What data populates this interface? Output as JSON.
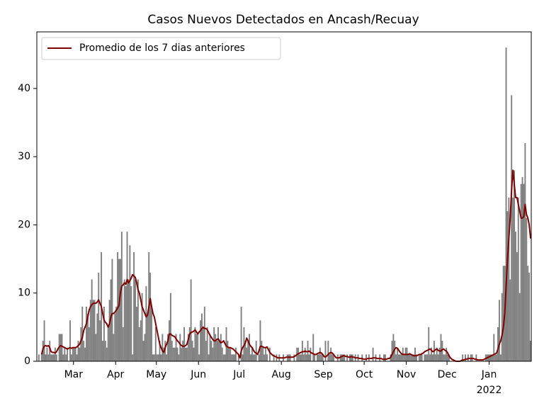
{
  "chart_data": {
    "type": "bar",
    "title": "Casos Nuevos Detectados en Ancash/Recuay",
    "categories": [
      null,
      null,
      null,
      null,
      null,
      null,
      null,
      null,
      null,
      null,
      null,
      null,
      null,
      null,
      null,
      null,
      null,
      null,
      null,
      null,
      null,
      null,
      null,
      null,
      null,
      null,
      null,
      "Mar",
      null,
      null,
      null,
      null,
      null,
      null,
      null,
      null,
      null,
      null,
      null,
      null,
      null,
      null,
      null,
      null,
      null,
      null,
      null,
      null,
      null,
      null,
      null,
      null,
      null,
      null,
      null,
      null,
      null,
      null,
      "Apr",
      null,
      null,
      null,
      null,
      null,
      null,
      null,
      null,
      null,
      null,
      null,
      null,
      null,
      null,
      null,
      null,
      null,
      null,
      null,
      null,
      null,
      null,
      null,
      null,
      null,
      null,
      null,
      null,
      null,
      "May",
      null,
      null,
      null,
      null,
      null,
      null,
      null,
      null,
      null,
      null,
      null,
      null,
      null,
      null,
      null,
      null,
      null,
      null,
      null,
      null,
      null,
      null,
      null,
      null,
      null,
      null,
      null,
      null,
      null,
      null,
      "Jun",
      null,
      null,
      null,
      null,
      null,
      null,
      null,
      null,
      null,
      null,
      null,
      null,
      null,
      null,
      null,
      null,
      null,
      null,
      null,
      null,
      null,
      null,
      null,
      null,
      null,
      null,
      null,
      null,
      null,
      "Jul",
      null,
      null,
      null,
      null,
      null,
      null,
      null,
      null,
      null,
      null,
      null,
      null,
      null,
      null,
      null,
      null,
      null,
      null,
      null,
      null,
      null,
      null,
      null,
      null,
      null,
      null,
      null,
      null,
      null,
      null,
      "Aug",
      null,
      null,
      null,
      null,
      null,
      null,
      null,
      null,
      null,
      null,
      null,
      null,
      null,
      null,
      null,
      null,
      null,
      null,
      null,
      null,
      null,
      null,
      null,
      null,
      null,
      null,
      null,
      null,
      null,
      null,
      "Sep",
      null,
      null,
      null,
      null,
      null,
      null,
      null,
      null,
      null,
      null,
      null,
      null,
      null,
      null,
      null,
      null,
      null,
      null,
      null,
      null,
      null,
      null,
      null,
      null,
      null,
      null,
      null,
      null,
      null,
      "Oct",
      null,
      null,
      null,
      null,
      null,
      null,
      null,
      null,
      null,
      null,
      null,
      null,
      null,
      null,
      null,
      null,
      null,
      null,
      null,
      null,
      null,
      null,
      null,
      null,
      null,
      null,
      null,
      null,
      null,
      null,
      "Nov",
      null,
      null,
      null,
      null,
      null,
      null,
      null,
      null,
      null,
      null,
      null,
      null,
      null,
      null,
      null,
      null,
      null,
      null,
      null,
      null,
      null,
      null,
      null,
      null,
      null,
      null,
      null,
      null,
      null,
      "Dec",
      null,
      null,
      null,
      null,
      null,
      null,
      null,
      null,
      null,
      null,
      null,
      null,
      null,
      null,
      null,
      null,
      null,
      null,
      null,
      null,
      null,
      null,
      null,
      null,
      null,
      null,
      null,
      null,
      null,
      null,
      "Jan",
      null,
      null,
      null,
      null,
      null,
      null,
      null,
      null,
      null,
      null,
      null,
      null,
      null,
      null,
      null,
      null,
      null,
      null,
      null,
      null,
      null,
      null,
      null,
      null,
      null,
      null,
      null,
      null,
      null,
      null
    ],
    "year_label": "2022",
    "series": [
      {
        "type": "bar",
        "color": "#808080",
        "values": [
          0,
          1,
          0,
          1,
          3,
          6,
          1,
          2,
          1,
          3,
          1,
          1,
          1,
          2,
          1,
          0,
          4,
          4,
          4,
          1,
          2,
          1,
          2,
          0,
          6,
          1,
          2,
          2,
          2,
          1,
          3,
          2,
          5,
          8,
          3,
          2,
          8,
          7,
          5,
          9,
          12,
          9,
          9,
          4,
          7,
          13,
          6,
          16,
          3,
          8,
          3,
          2,
          5,
          9,
          12,
          15,
          4,
          7,
          8,
          16,
          15,
          15,
          19,
          5,
          12,
          11,
          19,
          12,
          17,
          11,
          1,
          16,
          12,
          8,
          12,
          5,
          6,
          10,
          3,
          4,
          11,
          7,
          16,
          13,
          8,
          1,
          1,
          5,
          1,
          1,
          3,
          1,
          4,
          2,
          3,
          1,
          4,
          6,
          10,
          3,
          2,
          2,
          4,
          2,
          1,
          4,
          2,
          3,
          5,
          2,
          2,
          4,
          5,
          12,
          3,
          2,
          5,
          4,
          4,
          1,
          6,
          7,
          5,
          8,
          3,
          5,
          1,
          4,
          3,
          2,
          5,
          4,
          3,
          5,
          3,
          4,
          2,
          1,
          1,
          5,
          3,
          2,
          2,
          1,
          1,
          1,
          2,
          0,
          1,
          0,
          8,
          1,
          5,
          3,
          2,
          3,
          4,
          1,
          2,
          1,
          1,
          3,
          0,
          1,
          6,
          3,
          2,
          1,
          2,
          1,
          0,
          2,
          0,
          0,
          1,
          0,
          1,
          0,
          1,
          0,
          0,
          1,
          0,
          0,
          1,
          1,
          1,
          0,
          0,
          1,
          0,
          2,
          2,
          1,
          1,
          3,
          1,
          2,
          1,
          3,
          1,
          2,
          0,
          4,
          1,
          0,
          1,
          1,
          2,
          1,
          1,
          0,
          3,
          0,
          3,
          1,
          2,
          1,
          1,
          0,
          0,
          1,
          0,
          1,
          1,
          1,
          1,
          0,
          1,
          0,
          1,
          1,
          1,
          0,
          1,
          0,
          1,
          0,
          0,
          1,
          0,
          0,
          1,
          0,
          1,
          0,
          0,
          2,
          0,
          1,
          0,
          0,
          1,
          0,
          0,
          1,
          1,
          0,
          0,
          0,
          1,
          3,
          4,
          3,
          1,
          2,
          1,
          1,
          1,
          2,
          1,
          2,
          2,
          1,
          1,
          1,
          1,
          1,
          2,
          1,
          0,
          1,
          1,
          1,
          0,
          1,
          1,
          1,
          5,
          1,
          2,
          1,
          3,
          1,
          2,
          1,
          2,
          4,
          3,
          1,
          1,
          2,
          1,
          1,
          0,
          0,
          0,
          0,
          0,
          0,
          0,
          0,
          0,
          1,
          0,
          1,
          0,
          1,
          0,
          1,
          1,
          0,
          0,
          1,
          0,
          0,
          0,
          0,
          0,
          0,
          1,
          1,
          1,
          1,
          1,
          1,
          4,
          1,
          1,
          5,
          9,
          1,
          10,
          14,
          14,
          46,
          22,
          24,
          12,
          39,
          24,
          28,
          19,
          16,
          24,
          10,
          26,
          27,
          26,
          32,
          21,
          14,
          13,
          3
        ]
      },
      {
        "type": "line",
        "name": "Promedio de los 7 dias anteriores",
        "color": "#800000",
        "values": [
          null,
          null,
          null,
          1.0,
          1.8,
          2.2,
          2.3,
          2.2,
          2.3,
          2.0,
          1.4,
          1.3,
          1.3,
          1.2,
          1.4,
          1.8,
          2.1,
          2.3,
          2.2,
          2.1,
          2.0,
          1.9,
          1.8,
          1.9,
          2.0,
          1.9,
          2.0,
          2.0,
          2.0,
          2.1,
          2.3,
          2.5,
          3.0,
          3.5,
          4.5,
          5.0,
          5.5,
          6.5,
          7.5,
          8.0,
          8.3,
          8.5,
          8.5,
          8.5,
          8.7,
          9.0,
          8.5,
          8.0,
          7.0,
          6.0,
          5.7,
          5.5,
          5.0,
          5.5,
          6.5,
          7.0,
          7.0,
          7.2,
          7.5,
          7.8,
          8.2,
          10.0,
          11.0,
          11.2,
          11.5,
          11.3,
          12.0,
          11.5,
          11.8,
          12.2,
          12.7,
          12.5,
          12.3,
          11.5,
          10.5,
          10.0,
          9.0,
          8.0,
          7.5,
          7.0,
          6.5,
          6.8,
          8.0,
          9.2,
          8.0,
          7.0,
          6.5,
          5.5,
          4.5,
          3.5,
          2.5,
          2.0,
          1.5,
          1.3,
          2.0,
          2.5,
          3.0,
          4.0,
          4.0,
          3.8,
          3.7,
          3.6,
          3.3,
          3.0,
          2.8,
          2.5,
          2.3,
          2.2,
          2.2,
          2.3,
          2.5,
          3.2,
          4.0,
          4.2,
          4.3,
          4.4,
          4.6,
          4.3,
          4.0,
          4.3,
          4.5,
          4.8,
          5.0,
          4.8,
          4.8,
          4.6,
          4.2,
          3.8,
          3.5,
          3.2,
          3.0,
          3.0,
          3.2,
          3.3,
          3.0,
          2.7,
          2.8,
          3.0,
          2.6,
          2.2,
          2.1,
          2.0,
          2.0,
          1.9,
          1.8,
          1.6,
          1.4,
          1.2,
          1.0,
          0.5,
          1.5,
          2.0,
          2.3,
          2.7,
          3.4,
          3.0,
          2.5,
          2.2,
          2.0,
          1.6,
          1.3,
          1.2,
          1.0,
          1.5,
          2.2,
          2.2,
          2.1,
          2.0,
          2.0,
          2.1,
          1.7,
          1.3,
          1.1,
          0.9,
          0.8,
          0.7,
          0.6,
          0.5,
          0.5,
          0.5,
          0.5,
          0.5,
          0.5,
          0.6,
          0.6,
          0.6,
          0.6,
          0.6,
          0.6,
          0.7,
          0.8,
          1.0,
          1.1,
          1.2,
          1.3,
          1.4,
          1.4,
          1.5,
          1.4,
          1.4,
          1.5,
          1.3,
          1.2,
          1.1,
          1.0,
          1.0,
          1.1,
          1.2,
          1.3,
          1.2,
          1.0,
          0.7,
          0.6,
          0.8,
          1.0,
          1.2,
          1.3,
          1.2,
          1.0,
          0.7,
          0.5,
          0.5,
          0.5,
          0.6,
          0.7,
          0.8,
          0.8,
          0.7,
          0.7,
          0.6,
          0.6,
          0.7,
          0.6,
          0.6,
          0.5,
          0.5,
          0.5,
          0.4,
          0.4,
          0.4,
          0.3,
          0.3,
          0.3,
          0.4,
          0.4,
          0.4,
          0.4,
          0.5,
          0.5,
          0.5,
          0.4,
          0.4,
          0.4,
          0.4,
          0.3,
          0.3,
          0.3,
          0.3,
          0.4,
          0.4,
          0.6,
          1.0,
          1.4,
          1.8,
          2.0,
          1.9,
          1.6,
          1.3,
          1.1,
          1.0,
          1.0,
          1.0,
          1.0,
          1.0,
          1.1,
          1.0,
          0.9,
          0.8,
          0.8,
          0.8,
          0.9,
          1.0,
          1.0,
          1.1,
          1.2,
          1.4,
          1.5,
          1.6,
          1.7,
          1.8,
          1.6,
          1.4,
          1.5,
          1.7,
          1.8,
          1.6,
          1.5,
          1.5,
          1.7,
          1.8,
          1.6,
          1.5,
          1.2,
          0.8,
          0.5,
          0.3,
          0.2,
          0.1,
          0.0,
          0.0,
          0.0,
          0.0,
          0.1,
          0.2,
          0.2,
          0.3,
          0.3,
          0.4,
          0.4,
          0.4,
          0.4,
          0.4,
          0.3,
          0.3,
          0.2,
          0.2,
          0.2,
          0.2,
          0.2,
          0.3,
          0.4,
          0.5,
          0.6,
          0.7,
          0.8,
          0.9,
          1.0,
          1.1,
          1.2,
          1.8,
          2.5,
          3.0,
          3.8,
          5.0,
          7.0,
          11.0,
          15.0,
          18.0,
          21.0,
          25.0,
          28.0,
          26.0,
          24.0,
          24.0,
          23.0,
          22.0,
          21.0,
          21.0,
          21.2,
          23.0,
          21.5,
          21.0,
          20.0,
          18.0
        ]
      }
    ],
    "ylim": [
      0,
      48.3
    ],
    "yticks": [
      0,
      10,
      20,
      30,
      40
    ],
    "legend": "upper left"
  }
}
